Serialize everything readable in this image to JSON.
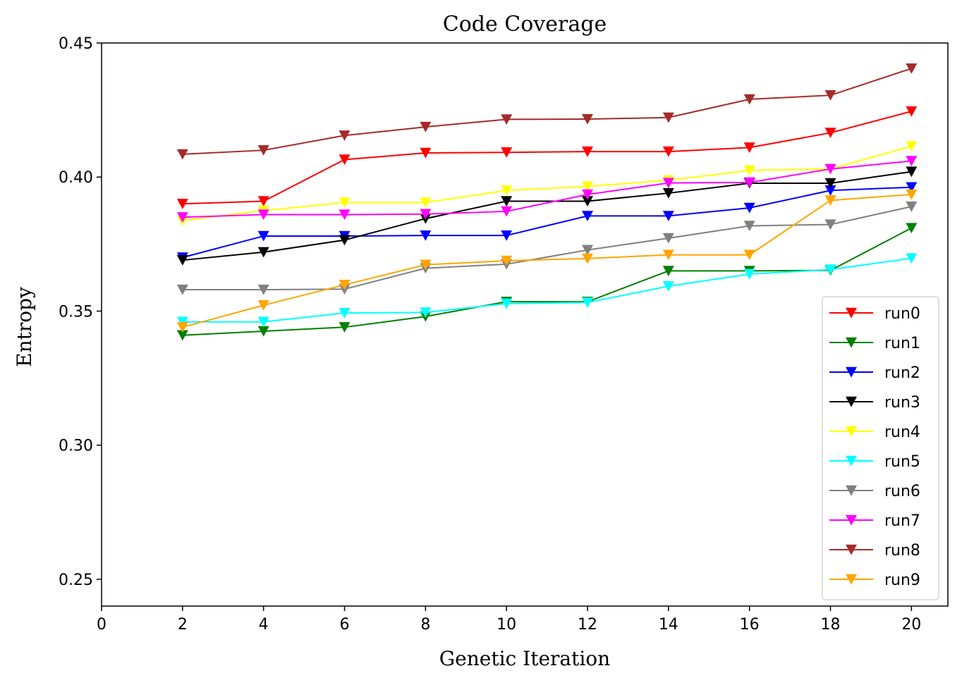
{
  "chart_data": {
    "type": "line",
    "title": "Code Coverage",
    "xlabel": "Genetic Iteration",
    "ylabel": "Entropy",
    "xlim": [
      0,
      20.9
    ],
    "ylim": [
      0.24,
      0.45
    ],
    "xticks": [
      "0",
      "2",
      "4",
      "6",
      "8",
      "10",
      "12",
      "14",
      "16",
      "18",
      "20"
    ],
    "yticks": [
      "0.25",
      "0.30",
      "0.35",
      "0.40",
      "0.45"
    ],
    "grid": false,
    "legend_position": "lower-right",
    "marker": "triangle-down",
    "x": [
      2,
      4,
      6,
      8,
      10,
      12,
      14,
      16,
      18,
      20
    ],
    "series": [
      {
        "name": "run0",
        "color": "#ff0000",
        "values": [
          0.39,
          0.391,
          0.4065,
          0.409,
          0.4092,
          0.4095,
          0.4095,
          0.411,
          0.4165,
          0.4245
        ]
      },
      {
        "name": "run1",
        "color": "#008000",
        "values": [
          0.341,
          0.3425,
          0.344,
          0.348,
          0.3535,
          0.3535,
          0.365,
          0.365,
          0.3652,
          0.381
        ]
      },
      {
        "name": "run2",
        "color": "#0000ff",
        "values": [
          0.37,
          0.378,
          0.378,
          0.3782,
          0.3782,
          0.3855,
          0.3855,
          0.3885,
          0.395,
          0.3962
        ]
      },
      {
        "name": "run3",
        "color": "#000000",
        "values": [
          0.369,
          0.372,
          0.3765,
          0.3845,
          0.391,
          0.391,
          0.394,
          0.3977,
          0.3977,
          0.402
        ]
      },
      {
        "name": "run4",
        "color": "#ffff00",
        "values": [
          0.3838,
          0.3875,
          0.3905,
          0.3905,
          0.395,
          0.3965,
          0.3988,
          0.4025,
          0.403,
          0.4115
        ]
      },
      {
        "name": "run5",
        "color": "#00ffff",
        "values": [
          0.346,
          0.346,
          0.3493,
          0.3495,
          0.3528,
          0.3532,
          0.3593,
          0.3638,
          0.3655,
          0.3697
        ]
      },
      {
        "name": "run6",
        "color": "#808080",
        "values": [
          0.358,
          0.358,
          0.3582,
          0.366,
          0.3675,
          0.3728,
          0.3772,
          0.3818,
          0.3823,
          0.389
        ]
      },
      {
        "name": "run7",
        "color": "#ff00ff",
        "values": [
          0.385,
          0.386,
          0.386,
          0.3862,
          0.3872,
          0.3935,
          0.3978,
          0.398,
          0.403,
          0.406
        ]
      },
      {
        "name": "run8",
        "color": "#a52a2a",
        "values": [
          0.4085,
          0.41,
          0.4155,
          0.4187,
          0.4215,
          0.4216,
          0.4222,
          0.429,
          0.4305,
          0.4405
        ]
      },
      {
        "name": "run9",
        "color": "#ffa500",
        "values": [
          0.344,
          0.3522,
          0.3598,
          0.3673,
          0.3688,
          0.3696,
          0.371,
          0.371,
          0.3913,
          0.3935
        ]
      }
    ]
  }
}
